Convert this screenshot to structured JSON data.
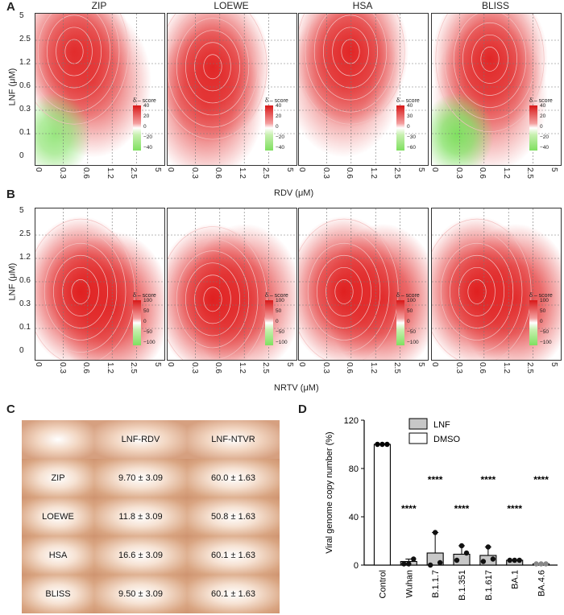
{
  "panels": {
    "a": "A",
    "b": "B",
    "c": "C",
    "d": "D"
  },
  "heatmap_rows": [
    {
      "row": "A",
      "ylabel": "LNF (μM)",
      "xlabel": "RDV (μM)",
      "y_ticks": [
        "5",
        "2.5",
        "1.2",
        "0.6",
        "0.3",
        "0.1",
        "0"
      ],
      "x_ticks": [
        "0",
        "0.3",
        "0.6",
        "1.2",
        "2.5",
        "5"
      ],
      "maps": [
        {
          "title": "ZIP",
          "legend_title": "δ – score",
          "legend_ticks": [
            "40",
            "20",
            "0",
            "−20",
            "−40"
          ],
          "hot": [
            [
              0.3,
              0.25,
              0.9
            ],
            [
              0.45,
              0.45,
              0.7
            ]
          ],
          "cold": [
            [
              0.15,
              0.8,
              0.8
            ]
          ]
        },
        {
          "title": "LOEWE",
          "legend_title": "δ – score",
          "legend_ticks": [
            "40",
            "20",
            "0",
            "−20",
            "−40"
          ],
          "hot": [
            [
              0.35,
              0.35,
              0.95
            ],
            [
              0.3,
              0.6,
              0.7
            ]
          ],
          "cold": []
        },
        {
          "title": "HSA",
          "legend_title": "δ – score",
          "legend_ticks": [
            "40",
            "30",
            "0",
            "−30",
            "−60"
          ],
          "hot": [
            [
              0.4,
              0.25,
              0.95
            ],
            [
              0.35,
              0.45,
              0.6
            ]
          ],
          "cold": []
        },
        {
          "title": "BLISS",
          "legend_title": "δ – score",
          "legend_ticks": [
            "40",
            "20",
            "0",
            "−20",
            "−40"
          ],
          "hot": [
            [
              0.45,
              0.3,
              0.95
            ],
            [
              0.45,
              0.55,
              0.6
            ]
          ],
          "cold": [
            [
              0.2,
              0.8,
              1.0
            ]
          ]
        }
      ]
    },
    {
      "row": "B",
      "ylabel": "LNF (μM)",
      "xlabel": "NRTV (μM)",
      "y_ticks": [
        "5",
        "2.5",
        "1.2",
        "0.6",
        "0.3",
        "0.1",
        "0"
      ],
      "x_ticks": [
        "0",
        "0.3",
        "0.6",
        "1.2",
        "2.5",
        "5"
      ],
      "maps": [
        {
          "title": "",
          "legend_title": "δ – score",
          "legend_ticks": [
            "100",
            "50",
            "0",
            "−50",
            "−100"
          ],
          "hot": [
            [
              0.35,
              0.55,
              1.0
            ],
            [
              0.6,
              0.65,
              0.9
            ]
          ],
          "cold": []
        },
        {
          "title": "",
          "legend_title": "δ – score",
          "legend_ticks": [
            "100",
            "50",
            "0",
            "−50",
            "−100"
          ],
          "hot": [
            [
              0.35,
              0.6,
              1.0
            ],
            [
              0.6,
              0.6,
              0.8
            ]
          ],
          "cold": []
        },
        {
          "title": "",
          "legend_title": "δ – score",
          "legend_ticks": [
            "100",
            "50",
            "0",
            "−50",
            "−100"
          ],
          "hot": [
            [
              0.35,
              0.55,
              1.0
            ],
            [
              0.65,
              0.6,
              0.9
            ]
          ],
          "cold": []
        },
        {
          "title": "",
          "legend_title": "δ – score",
          "legend_ticks": [
            "100",
            "50",
            "0",
            "−50",
            "−100"
          ],
          "hot": [
            [
              0.35,
              0.55,
              1.0
            ],
            [
              0.65,
              0.6,
              0.9
            ]
          ],
          "cold": []
        }
      ]
    }
  ],
  "table": {
    "headers": [
      "",
      "LNF-RDV",
      "LNF-NTVR"
    ],
    "rows": [
      [
        "ZIP",
        "9.70 ± 3.09",
        "60.0 ± 1.63"
      ],
      [
        "LOEWE",
        "11.8 ± 3.09",
        "50.8 ± 1.63"
      ],
      [
        "HSA",
        "16.6 ± 3.09",
        "60.1 ± 1.63"
      ],
      [
        "BLISS",
        "9.50 ± 3.09",
        "60.1 ± 1.63"
      ]
    ]
  },
  "chart_data": {
    "type": "bar",
    "ylabel": "Viral genome copy number (%)",
    "ylim": [
      0,
      120
    ],
    "yticks": [
      0,
      40,
      80,
      120
    ],
    "categories": [
      "Control",
      "Wuhan",
      "B.1.1.7",
      "B.1.351",
      "B.1.617",
      "BA.1",
      "BA.4.6"
    ],
    "values": [
      100,
      3,
      10,
      9,
      8,
      4,
      1
    ],
    "points": [
      [
        100,
        100,
        100
      ],
      [
        1,
        1,
        5
      ],
      [
        0,
        27,
        2
      ],
      [
        4,
        16,
        10
      ],
      [
        3,
        15,
        5
      ],
      [
        4,
        4,
        4
      ],
      [
        1,
        1,
        1
      ]
    ],
    "significance": [
      "",
      "****",
      "****",
      "****",
      "****",
      "****",
      "****"
    ],
    "legend": [
      {
        "name": "LNF",
        "color": "#c8c8c8"
      },
      {
        "name": "DMSO",
        "color": "#ffffff"
      }
    ],
    "colors": {
      "bar_dmso": "#ffffff",
      "bar_lnf": "#c8c8c8",
      "dot_control": "#000000",
      "dot_lnf": "#111111",
      "dot_last": "#888888"
    }
  }
}
